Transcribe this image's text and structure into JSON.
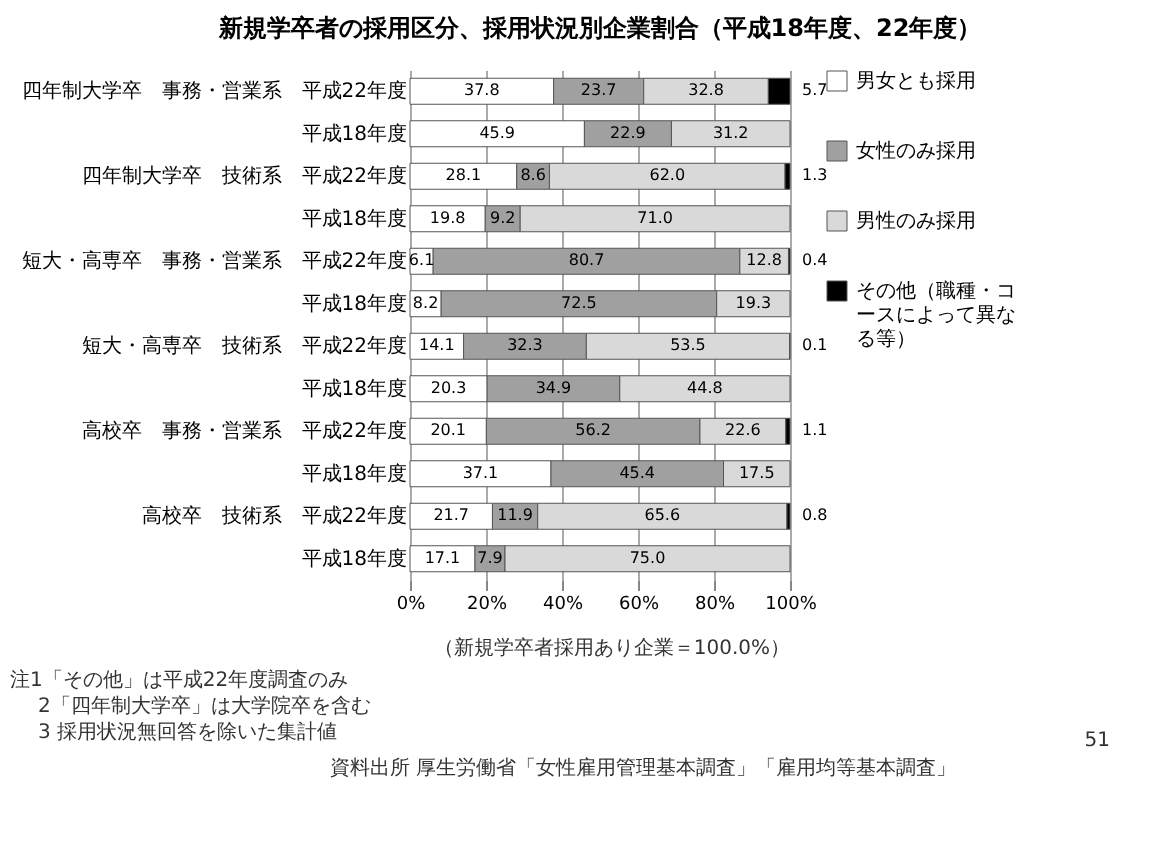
{
  "chart_data": {
    "type": "bar",
    "orientation": "horizontal",
    "stacked": true,
    "title": "新規学卒者の採用区分、採用状況別企業割合（平成18年度、22年度）",
    "categories": [
      "四年制大学卒　事務・営業系　平成22年度",
      "平成18年度",
      "四年制大学卒　技術系　平成22年度",
      "平成18年度",
      "短大・高専卒　事務・営業系　平成22年度",
      "平成18年度",
      "短大・高専卒　技術系　平成22年度",
      "平成18年度",
      "高校卒　事務・営業系　平成22年度",
      "平成18年度",
      "高校卒　技術系　平成22年度",
      "平成18年度"
    ],
    "series": [
      {
        "name": "男女とも採用",
        "color": "#ffffff",
        "values": [
          37.8,
          45.9,
          28.1,
          19.8,
          6.1,
          8.2,
          14.1,
          20.3,
          20.1,
          37.1,
          21.7,
          17.1
        ],
        "value_labels": [
          "37.8",
          "45.9",
          "28.1",
          "19.8",
          "6.1",
          "8.2",
          "14.1",
          "20.3",
          "20.1",
          "37.1",
          "21.7",
          "17.1"
        ]
      },
      {
        "name": "女性のみ採用",
        "color": "#a0a0a0",
        "values": [
          23.7,
          22.9,
          8.6,
          9.2,
          80.7,
          72.5,
          32.3,
          34.9,
          56.2,
          45.4,
          11.9,
          7.9
        ],
        "value_labels": [
          "23.7",
          "22.9",
          "8.6",
          "9.2",
          "80.7",
          "72.5",
          "32.3",
          "34.9",
          "56.2",
          "45.4",
          "11.9",
          "7.9"
        ]
      },
      {
        "name": "男性のみ採用",
        "color": "#d9d9d9",
        "values": [
          32.8,
          31.2,
          62.0,
          71.0,
          12.8,
          19.3,
          53.5,
          44.8,
          22.6,
          17.5,
          65.6,
          75.0
        ],
        "value_labels": [
          "32.8",
          "31.2",
          "62.0",
          "71.0",
          "12.8",
          "19.3",
          "53.5",
          "44.8",
          "22.6",
          "17.5",
          "65.6",
          "75.0"
        ]
      },
      {
        "name": "その他（職種・コースによって異なる等）",
        "color": "#000000",
        "values": [
          5.7,
          null,
          1.3,
          null,
          0.4,
          null,
          0.1,
          null,
          1.1,
          null,
          0.8,
          null
        ],
        "value_labels": [
          "5.7",
          null,
          "1.3",
          null,
          "0.4",
          null,
          "0.1",
          null,
          "1.1",
          null,
          "0.8",
          null
        ]
      }
    ],
    "xlim": [
      0,
      100
    ],
    "xticks": [
      {
        "value": 0,
        "label": "0%"
      },
      {
        "value": 20,
        "label": "20%"
      },
      {
        "value": 40,
        "label": "40%"
      },
      {
        "value": 60,
        "label": "60%"
      },
      {
        "value": 80,
        "label": "80%"
      },
      {
        "value": 100,
        "label": "100%"
      }
    ],
    "grid": "x",
    "legend": "right",
    "annotations": [
      "（新規学卒者採用あり企業＝100.0%）",
      "注1「その他」は平成22年度調査のみ",
      "2「四年制大学卒」は大学院卒を含む",
      "3 採用状況無回答を除いた集計値",
      "資料出所 厚生労働省「女性雇用管理基本調査」「雇用均等基本調査」",
      "51"
    ]
  }
}
